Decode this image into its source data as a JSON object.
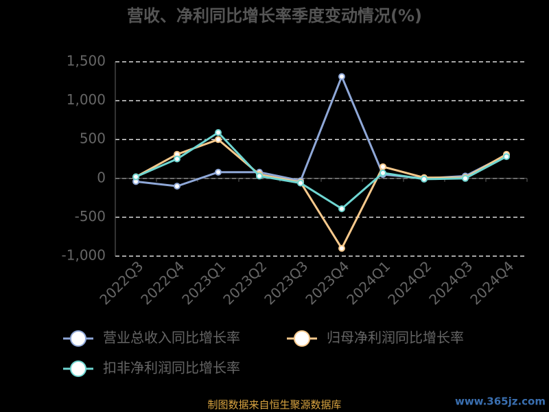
{
  "chart_data": {
    "type": "line",
    "title": "营收、净利同比增长率季度变动情况(%)",
    "categories": [
      "2022Q3",
      "2022Q4",
      "2023Q1",
      "2023Q2",
      "2023Q3",
      "2023Q4",
      "2024Q1",
      "2024Q2",
      "2024Q3",
      "2024Q4"
    ],
    "series": [
      {
        "name": "营业总收入同比增长率",
        "color": "#8fa8d8",
        "values": [
          -40,
          -100,
          80,
          80,
          -30,
          1310,
          50,
          0,
          30,
          300
        ]
      },
      {
        "name": "归母净利润同比增长率",
        "color": "#f7c98c",
        "values": [
          20,
          310,
          500,
          50,
          -50,
          -900,
          150,
          10,
          10,
          310
        ]
      },
      {
        "name": "扣非净利润同比增长率",
        "color": "#6fd6d2",
        "values": [
          20,
          250,
          590,
          30,
          -60,
          -390,
          70,
          -10,
          0,
          280
        ]
      }
    ],
    "ylim": [
      -1000,
      1500
    ],
    "yticks": [
      {
        "value": -1000,
        "label": "-1,000"
      },
      -500,
      0,
      500,
      {
        "value": 1000,
        "label": "1,000"
      },
      {
        "value": 1500,
        "label": "1,500"
      }
    ],
    "grid": true,
    "footer": "制图数据来自恒生聚源数据库",
    "watermark": "www.365jz.com"
  }
}
